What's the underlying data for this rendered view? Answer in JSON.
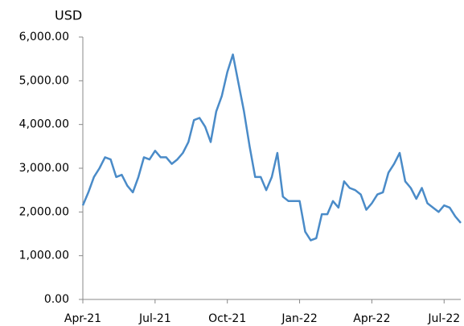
{
  "chart_data": {
    "type": "line",
    "y_label": "USD",
    "categories": [
      "Apr-21",
      null,
      null,
      null,
      null,
      null,
      null,
      null,
      null,
      null,
      null,
      null,
      null,
      "Jul-21",
      null,
      null,
      null,
      null,
      null,
      null,
      null,
      null,
      null,
      null,
      null,
      null,
      "Oct-21",
      null,
      null,
      null,
      null,
      null,
      null,
      null,
      null,
      null,
      null,
      null,
      null,
      "Jan-22",
      null,
      null,
      null,
      null,
      null,
      null,
      null,
      null,
      null,
      null,
      null,
      null,
      "Apr-22",
      null,
      null,
      null,
      null,
      null,
      null,
      null,
      null,
      null,
      null,
      null,
      null,
      "Jul-22",
      null,
      null,
      null
    ],
    "series": [
      {
        "name": "USD",
        "color": "#4a8bc8",
        "values": [
          2150,
          2450,
          2800,
          3000,
          3250,
          3200,
          2800,
          2850,
          2600,
          2450,
          2800,
          3250,
          3200,
          3400,
          3250,
          3250,
          3100,
          3200,
          3350,
          3600,
          4100,
          4150,
          3950,
          3600,
          4300,
          4650,
          5200,
          5600,
          4950,
          4300,
          3500,
          2800,
          2800,
          2500,
          2800,
          3350,
          2350,
          2250,
          2250,
          2250,
          1550,
          1350,
          1400,
          1950,
          1950,
          2250,
          2100,
          2700,
          2550,
          2500,
          2400,
          2050,
          2200,
          2400,
          2450,
          2900,
          3100,
          3350,
          2700,
          2550,
          2300,
          2550,
          2200,
          2100,
          2000,
          2150,
          2100,
          1900,
          1750
        ]
      }
    ],
    "ylim": [
      0,
      6000
    ],
    "yticks": [
      {
        "value": 0,
        "label": "0.00"
      },
      {
        "value": 1000,
        "label": "1,000.00"
      },
      {
        "value": 2000,
        "label": "2,000.00"
      },
      {
        "value": 3000,
        "label": "3,000.00"
      },
      {
        "value": 4000,
        "label": "4,000.00"
      },
      {
        "value": 5000,
        "label": "5,000.00"
      },
      {
        "value": 6000,
        "label": "6,000.00"
      }
    ],
    "grid": false
  }
}
